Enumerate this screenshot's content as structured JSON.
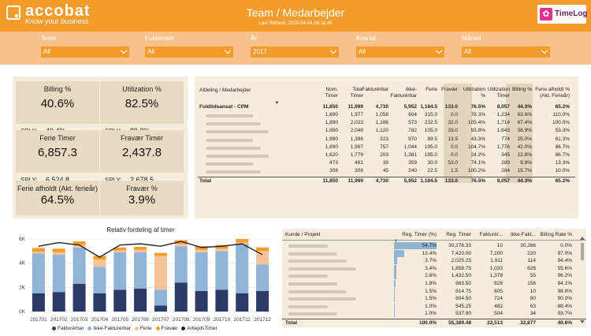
{
  "header": {
    "logo_text": "accobat",
    "logo_sub": "Know your business",
    "title": "Team / Medarbejder",
    "refresh": "Last Refresh: 2018-04-04 06:18:49",
    "timelog": "TimeLog"
  },
  "filters": [
    {
      "label": "Team",
      "value": "All"
    },
    {
      "label": "Fuldenavn",
      "value": "All"
    },
    {
      "label": "År",
      "value": "2017"
    },
    {
      "label": "Kvartal",
      "value": "All"
    },
    {
      "label": "Måned",
      "value": "All"
    }
  ],
  "kpis": [
    {
      "label": "Billing %",
      "value": "40.6%",
      "sply_label": "SPLY:",
      "sply": "40.4%"
    },
    {
      "label": "Utilization %",
      "value": "82.5%",
      "sply_label": "SPLY:",
      "sply": "89.8%"
    },
    {
      "label": "Ferie Timer",
      "value": "6,857.3",
      "sply_label": "SPLY:",
      "sply": "6,524.8"
    },
    {
      "label": "Fravær Timer",
      "value": "2,437.8",
      "sply_label": "SPLY:",
      "sply": "2,678.5"
    },
    {
      "label": "Ferie afholdt (Akt. ferieår)",
      "value": "64.5%"
    },
    {
      "label": "Fravær %",
      "value": "3.9%"
    }
  ],
  "table1": {
    "headers": [
      "Afdeling / Medarbejder",
      "Nom. Timer",
      "Total Timer",
      "Fakturérbar",
      "Ikke-Fakturérbar",
      "Ferie",
      "Fravær",
      "Utilization %",
      "Utilization Timer",
      "Billing %",
      "Ferie afholdt % (Akt. Ferieår)"
    ],
    "group_label": "Fuldtidsansat - CPM",
    "group": [
      "11,850",
      "11,999",
      "4,730",
      "5,952",
      "1,184.5",
      "133.0",
      "76.5%",
      "8,057",
      "44.3%",
      "65.2%"
    ],
    "rows": [
      [
        "1,890",
        "1,977",
        "1,058",
        "604",
        "315.0",
        "0.0",
        "78.3%",
        "1,234",
        "63.6%",
        "110.0%"
      ],
      [
        "1,890",
        "2,023",
        "1,186",
        "573",
        "232.5",
        "32.0",
        "105.4%",
        "1,714",
        "67.4%",
        "100.0%"
      ],
      [
        "1,890",
        "2,040",
        "1,120",
        "782",
        "105.0",
        "33.0",
        "93.8%",
        "1,643",
        "58.9%",
        "53.3%"
      ],
      [
        "1,890",
        "1,396",
        "323",
        "970",
        "89.5",
        "13.5",
        "43.3%",
        "774",
        "25.0%",
        "61.3%"
      ],
      [
        "1,890",
        "1,997",
        "757",
        "1,044",
        "195.0",
        "0.0",
        "104.7%",
        "1,776",
        "42.0%",
        "86.7%"
      ],
      [
        "1,620",
        "1,779",
        "203",
        "1,381",
        "195.0",
        "0.0",
        "24.2%",
        "345",
        "12.8%",
        "86.7%"
      ],
      [
        "473",
        "481",
        "39",
        "359",
        "30.0",
        "53.0",
        "74.1%",
        "289",
        "9.8%",
        "13.3%"
      ],
      [
        "308",
        "308",
        "45",
        "240",
        "22.5",
        "1.5",
        "100.2%",
        "284",
        "15.7%",
        "10.0%"
      ]
    ],
    "total_label": "Total",
    "total": [
      "11,850",
      "11,999",
      "4,730",
      "5,952",
      "1,184.5",
      "133.0",
      "76.5%",
      "8,057",
      "44.3%",
      "65.2%"
    ]
  },
  "chart_data": {
    "type": "bar",
    "title": "Relativ fordeling af timer",
    "categories": [
      "201701",
      "201702",
      "201703",
      "201704",
      "201705",
      "201706",
      "201707",
      "201708",
      "201709",
      "201710",
      "201711",
      "201712"
    ],
    "ylim": [
      0,
      6000
    ],
    "yticks": [
      "0K",
      "2K",
      "4K",
      "6K"
    ],
    "series": [
      {
        "name": "Fakturérbar",
        "color": "#2b3a67",
        "values": [
          1500,
          1600,
          2300,
          1500,
          1800,
          1900,
          500,
          2400,
          1700,
          1800,
          1500,
          1700
        ]
      },
      {
        "name": "Ikke-Fakturérbar",
        "color": "#8fb4d6",
        "values": [
          3300,
          3100,
          3000,
          2200,
          3100,
          3000,
          1300,
          3000,
          3200,
          3200,
          4100,
          2200
        ]
      },
      {
        "name": "Ferie",
        "color": "#f6c29a",
        "values": [
          150,
          200,
          200,
          600,
          150,
          200,
          2800,
          200,
          200,
          200,
          100,
          1100
        ]
      },
      {
        "name": "Fravær",
        "color": "#f39c2b",
        "values": [
          300,
          300,
          300,
          300,
          250,
          250,
          250,
          300,
          300,
          300,
          300,
          300
        ]
      }
    ],
    "line": {
      "name": "ArbejdsTimer",
      "color": "#222222",
      "values": [
        5400,
        5700,
        5500,
        4500,
        5500,
        5600,
        5400,
        5800,
        5300,
        5400,
        5600,
        4700
      ]
    }
  },
  "table2": {
    "headers": [
      "Kunde / Projekt",
      "Reg. Timer (%)",
      "Reg. Timer",
      "Fakturér...",
      "Ikke-Fakt...",
      "Billing Rate %"
    ],
    "rows": [
      {
        "pct": "54.7%",
        "pctv": 54.7,
        "reg": "30,276.33",
        "fak": "10",
        "ikke": "30,266",
        "bill": "0.0%"
      },
      {
        "pct": "13.4%",
        "pctv": 13.4,
        "reg": "7,420.00",
        "fak": "7,200",
        "ikke": "220",
        "bill": "97.0%"
      },
      {
        "pct": "3.7%",
        "pctv": 3.7,
        "reg": "2,025.25",
        "fak": "1,911",
        "ikke": "114",
        "bill": "94.4%"
      },
      {
        "pct": "3.4%",
        "pctv": 3.4,
        "reg": "1,858.75",
        "fak": "1,033",
        "ikke": "826",
        "bill": "55.6%"
      },
      {
        "pct": "2.6%",
        "pctv": 2.6,
        "reg": "1,432.50",
        "fak": "1,378",
        "ikke": "55",
        "bill": "96.2%"
      },
      {
        "pct": "1.8%",
        "pctv": 1.8,
        "reg": "983.50",
        "fak": "828",
        "ikke": "156",
        "bill": "84.1%"
      },
      {
        "pct": "1.5%",
        "pctv": 1.5,
        "reg": "814.75",
        "fak": "805",
        "ikke": "10",
        "bill": "98.8%"
      },
      {
        "pct": "1.5%",
        "pctv": 1.5,
        "reg": "804.50",
        "fak": "724",
        "ikke": "80",
        "bill": "90.0%"
      },
      {
        "pct": "1.0%",
        "pctv": 1.0,
        "reg": "545.25",
        "fak": "482",
        "ikke": "63",
        "bill": "88.4%"
      },
      {
        "pct": "1.0%",
        "pctv": 1.0,
        "reg": "537.90",
        "fak": "504",
        "ikke": "34",
        "bill": "93.7%"
      }
    ],
    "total_label": "Total",
    "total": {
      "pct": "100.0%",
      "reg": "55,389.48",
      "fak": "22,513",
      "ikke": "32,877",
      "bill": "40.6%"
    }
  }
}
